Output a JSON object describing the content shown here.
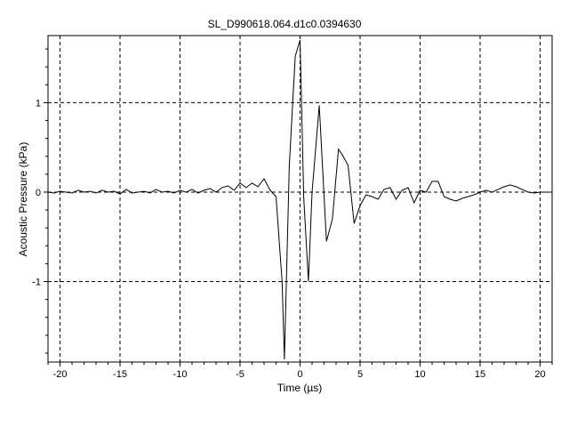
{
  "chart_data": {
    "type": "line",
    "title": "SL_D990618.064.d1c0.0394630",
    "xlabel": "Time (µs)",
    "ylabel": "Acoustic Pressure (kPa)",
    "xlim": [
      -21,
      21
    ],
    "ylim": [
      -1.9,
      1.75
    ],
    "xticks": [
      -20,
      -15,
      -10,
      -5,
      0,
      5,
      10,
      15,
      20
    ],
    "xtick_labels": [
      "-20",
      "-15",
      "-10",
      "-5",
      "0",
      "5",
      "10",
      "15",
      "20"
    ],
    "yticks": [
      1,
      0,
      -1
    ],
    "ytick_labels": [
      "1",
      "0",
      "-1"
    ],
    "grid": true,
    "grid_style": "dashed",
    "line_color": "#000000",
    "series": [
      {
        "x": [
          -21,
          -20.5,
          -20,
          -19.5,
          -19,
          -18.5,
          -18,
          -17.5,
          -17,
          -16.5,
          -16,
          -15.5,
          -15,
          -14.5,
          -14,
          -13.5,
          -13,
          -12.5,
          -12,
          -11.5,
          -11,
          -10.5,
          -10,
          -9.5,
          -9,
          -8.5,
          -8,
          -7.5,
          -7,
          -6.5,
          -6,
          -5.5,
          -5,
          -4.5,
          -4,
          -3.5,
          -3,
          -2.5,
          -2,
          -1.5,
          -1.3,
          -0.9,
          -0.4,
          0,
          0.3,
          0.7,
          1.0,
          1.6,
          2.2,
          2.7,
          3.2,
          3.5,
          4.0,
          4.5,
          5.0,
          5.5,
          6.0,
          6.5,
          7.0,
          7.5,
          8.0,
          8.5,
          9.0,
          9.5,
          10.0,
          10.5,
          11.0,
          11.5,
          12.0,
          12.5,
          13.0,
          13.5,
          14.0,
          14.5,
          15.0,
          15.5,
          16.0,
          16.5,
          17.0,
          17.5,
          18.0,
          18.5,
          19.0,
          19.5,
          20.0,
          20.5,
          21.0
        ],
        "y": [
          0.0,
          -0.01,
          0.01,
          0.0,
          -0.01,
          0.02,
          0.0,
          0.01,
          -0.01,
          0.02,
          0.0,
          0.01,
          -0.02,
          0.03,
          -0.01,
          0.0,
          0.01,
          -0.01,
          0.03,
          0.0,
          0.01,
          -0.01,
          0.02,
          0.0,
          0.03,
          -0.01,
          0.02,
          0.04,
          0.0,
          0.05,
          0.07,
          0.02,
          0.1,
          0.05,
          0.1,
          0.06,
          0.15,
          0.02,
          -0.05,
          -1.0,
          -1.87,
          0.3,
          1.52,
          1.7,
          -0.05,
          -1.0,
          0.0,
          0.97,
          -0.55,
          -0.3,
          0.48,
          0.42,
          0.3,
          -0.35,
          -0.15,
          -0.03,
          -0.05,
          -0.08,
          0.03,
          0.05,
          -0.08,
          0.02,
          0.05,
          -0.12,
          0.02,
          0.0,
          0.12,
          0.12,
          -0.05,
          -0.08,
          -0.1,
          -0.07,
          -0.05,
          -0.03,
          0.0,
          0.02,
          0.0,
          0.03,
          0.06,
          0.08,
          0.06,
          0.03,
          0.0,
          -0.01,
          0.0,
          0.0,
          0.0
        ]
      }
    ]
  }
}
